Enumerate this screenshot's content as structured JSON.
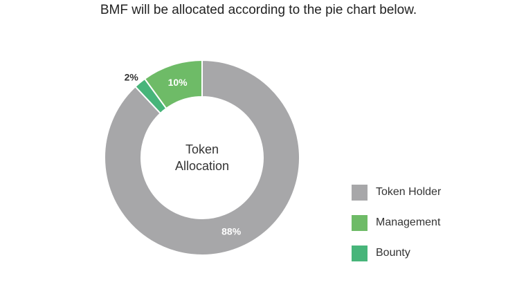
{
  "chart_data": {
    "type": "pie",
    "variant": "donut",
    "title": "BMF will be allocated according to the pie chart below.",
    "center_label": [
      "Token",
      "Allocation"
    ],
    "slices": [
      {
        "name": "Token Holder",
        "value": 88,
        "label": "88%",
        "color": "#a7a7a9",
        "label_color": "#ffffff"
      },
      {
        "name": "Bounty",
        "value": 2,
        "label": "2%",
        "color": "#47b57a",
        "label_color": "#333333"
      },
      {
        "name": "Management",
        "value": 10,
        "label": "10%",
        "color": "#6ebb67",
        "label_color": "#ffffff"
      }
    ],
    "legend_position": "bottom-right",
    "legend": [
      "Token Holder",
      "Management",
      "Bounty"
    ]
  }
}
